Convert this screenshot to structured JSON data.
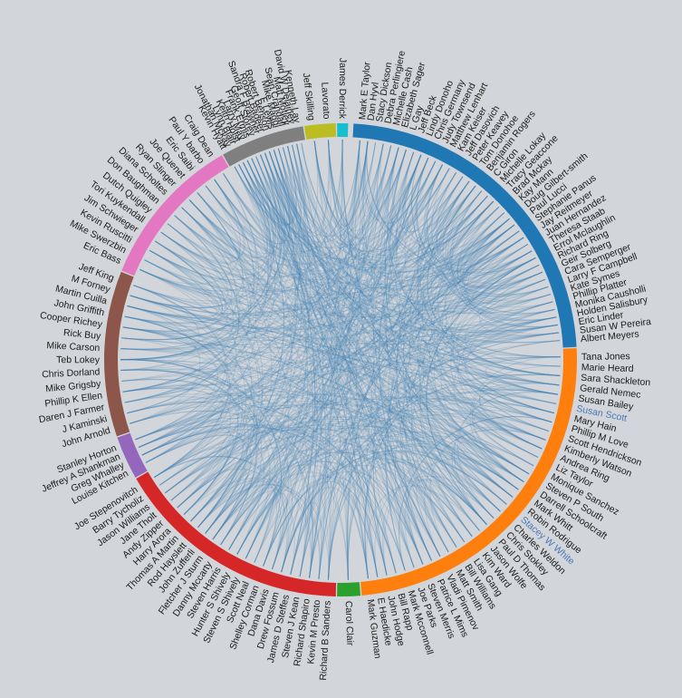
{
  "groups": [
    {
      "color": "#1f77b4",
      "start": 3,
      "end": 87,
      "nodes": [
        "Mark E Taylor",
        "Dan Hyvl",
        "Stacy Dickson",
        "Debra Perlingiere",
        "Michelle Cash",
        "Elizabeth Sager",
        "L Gay",
        "Jeff Beck",
        "Lindy Donoho",
        "Chris Germany",
        "Judy Townsend",
        "Matthew Lenhart",
        "Kam Keiser",
        "Jeff Dasovich",
        "Peter Keavey",
        "Tom Donohoe",
        "Benjamin Rogers",
        "C Giron",
        "Michelle Lokay",
        "Tracy Geaccone",
        "Brad Mckay",
        "Kay Mann",
        "Doug Gilbert-smith",
        "Paul Lucci",
        "Stephanie Panus",
        "Jay Reitmeyer",
        "Juan Hernandez",
        "Theresa Staab",
        "Errol Mclaughlin",
        "Richard Ring",
        "Geir Solberg",
        "Cara Semperger",
        "Larry F Campbell",
        "Kate Symes",
        "Phillip Platter",
        "Monika Causholli",
        "Holden Salisbury",
        "Eric Linder",
        "Susan W Pereira",
        "Albert Meyers"
      ]
    },
    {
      "color": "#ff7f0e",
      "start": 87,
      "end": 175,
      "nodes": [
        "Tana Jones",
        "Marie Heard",
        "Sara Shackleton",
        "Gerald Nemec",
        "Susan Bailey",
        "Susan Scott",
        "Mary Hain",
        "Phillip M Love",
        "Scott Hendrickson",
        "Kimberly Watson",
        "Andrea Ring",
        "Liz Taylor",
        "Monique Sanchez",
        "Steven P South",
        "Darrell Schoolcraft",
        "Mark Whitt",
        "Robin Rodrigue",
        "Stacey W White",
        "Charles Weldon",
        "Chris Stokley",
        "Paul D Thomas",
        "Jason Wolfe",
        "Kim Ward",
        "Lisa Gang",
        "Bill Williams",
        "Matt Smith",
        "Vladi Pimenov",
        "Patrice L Mims",
        "Steven Merris",
        "Joe Parks",
        "Mark Mcconnell",
        "Bill Rapp",
        "John Hodge",
        "E Haedicke",
        "Mark Guzman"
      ]
    },
    {
      "color": "#2ca02c",
      "start": 175,
      "end": 181,
      "nodes": [
        "Carol Clair"
      ]
    },
    {
      "color": "#d62728",
      "start": 181,
      "end": 240,
      "nodes": [
        "Richard B Sanders",
        "Kevin M Presto",
        "Richard Shapiro",
        "Steven J Kean",
        "James D Steffes",
        "Drew Fossum",
        "Dana Davis",
        "Shelley Corman",
        "Scott Neal",
        "Steven S Shively",
        "Hunter S Shively",
        "Steven Harris",
        "Danny Mccarty",
        "Fletcher J Sturm",
        "John Zufferli",
        "Rod Hayslett",
        "Thomas A Martin",
        "Harry Arora",
        "Andy Zipper",
        "Jane Tholt",
        "Jason Williams",
        "Barry Tycholiz",
        "Joe Stepenovitch"
      ]
    },
    {
      "color": "#9467bd",
      "start": 240,
      "end": 251,
      "nodes": [
        "Louise Kitchen",
        "Greg Whalley",
        "Jeffrey A Shankman",
        "Stanley Horton"
      ]
    },
    {
      "color": "#8c564b",
      "start": 251,
      "end": 292,
      "nodes": [
        "John Arnold",
        "J Kaminski",
        "Daren J Farmer",
        "Phillip K Ellen",
        "Mike Grigsby",
        "Chris Dorland",
        "Teb Lokey",
        "Mike Carson",
        "Rick Buy",
        "Cooper Richey",
        "John Griffith",
        "Martin Cuilla",
        "M Forney",
        "Jeff King"
      ]
    },
    {
      "color": "#e377c2",
      "start": 292,
      "end": 330,
      "nodes": [
        "Eric Bass",
        "Mike Swerzbin",
        "Kevin Ruscitti",
        "Jim Schwieger",
        "Tori Kuykendall",
        "Dutch Quigley",
        "Don Baughman",
        "Diana Scholtes",
        "Ryan Slinger",
        "Joe Quenet",
        "Eric Saibi",
        "Paul Y barbo",
        "Craig Dean"
      ]
    },
    {
      "color": "#7f7f7f",
      "start": 330,
      "end": 351,
      "nodes": [
        "Kevin Hyatt",
        "Jonathan Mckay",
        "Lynn Blair",
        "Keith Holst",
        "Larry May",
        "Frank Ermis",
        "Geoff Storey",
        "Sandra F Brawner",
        "Robert Badeer",
        "Robert Benson",
        "F Lewis",
        "Mike Maggi",
        "Sean Crandall",
        "Matt Motley",
        "David W Delainey",
        "Kenneth Lay"
      ]
    },
    {
      "color": "#bcbd22",
      "start": 351,
      "end": 359,
      "nodes": [
        "Jeff Skilling",
        "Lavorato"
      ]
    },
    {
      "color": "#17becf",
      "start": 359,
      "end": 362,
      "nodes": [
        "James Derrick"
      ]
    }
  ],
  "highlighted": [
    "Susan Scott",
    "Stacey W White"
  ],
  "link_color": "#4682b4"
}
